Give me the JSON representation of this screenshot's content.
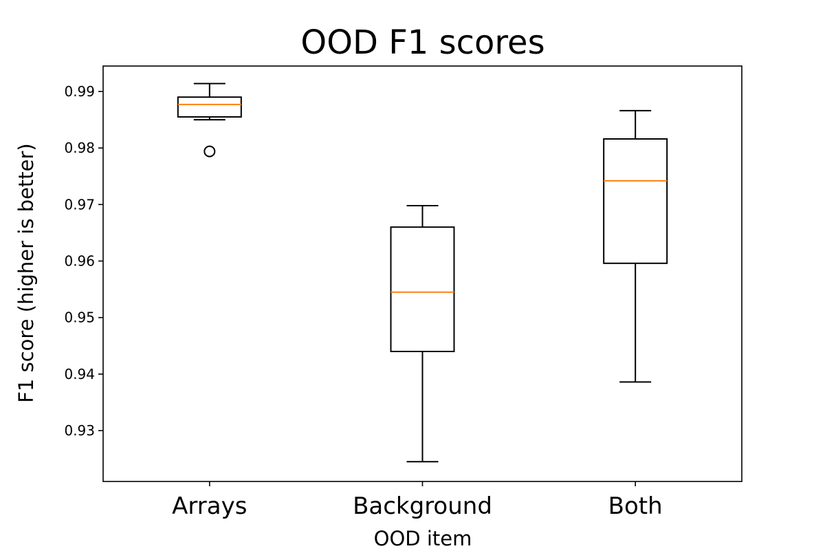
{
  "chart_data": {
    "type": "box",
    "title": "OOD F1 scores",
    "xlabel": "OOD item",
    "ylabel": "F1 score (higher is better)",
    "ylim": [
      0.921,
      0.9945
    ],
    "yticks": [
      0.93,
      0.94,
      0.95,
      0.96,
      0.97,
      0.98,
      0.99
    ],
    "ytick_labels": [
      "0.93",
      "0.94",
      "0.95",
      "0.96",
      "0.97",
      "0.98",
      "0.99"
    ],
    "categories": [
      "Arrays",
      "Background",
      "Both"
    ],
    "boxes": [
      {
        "category": "Arrays",
        "whisker_low": 0.985,
        "q1": 0.9855,
        "median": 0.9877,
        "q3": 0.989,
        "whisker_high": 0.9914,
        "outliers": [
          0.9794
        ]
      },
      {
        "category": "Background",
        "whisker_low": 0.9245,
        "q1": 0.944,
        "median": 0.9545,
        "q3": 0.966,
        "whisker_high": 0.9698,
        "outliers": []
      },
      {
        "category": "Both",
        "whisker_low": 0.9386,
        "q1": 0.9596,
        "median": 0.9742,
        "q3": 0.9816,
        "whisker_high": 0.9866,
        "outliers": []
      }
    ],
    "grid": false,
    "colors": {
      "box": "#000000",
      "median": "#ff7f0e",
      "outlier": "#000000"
    }
  }
}
